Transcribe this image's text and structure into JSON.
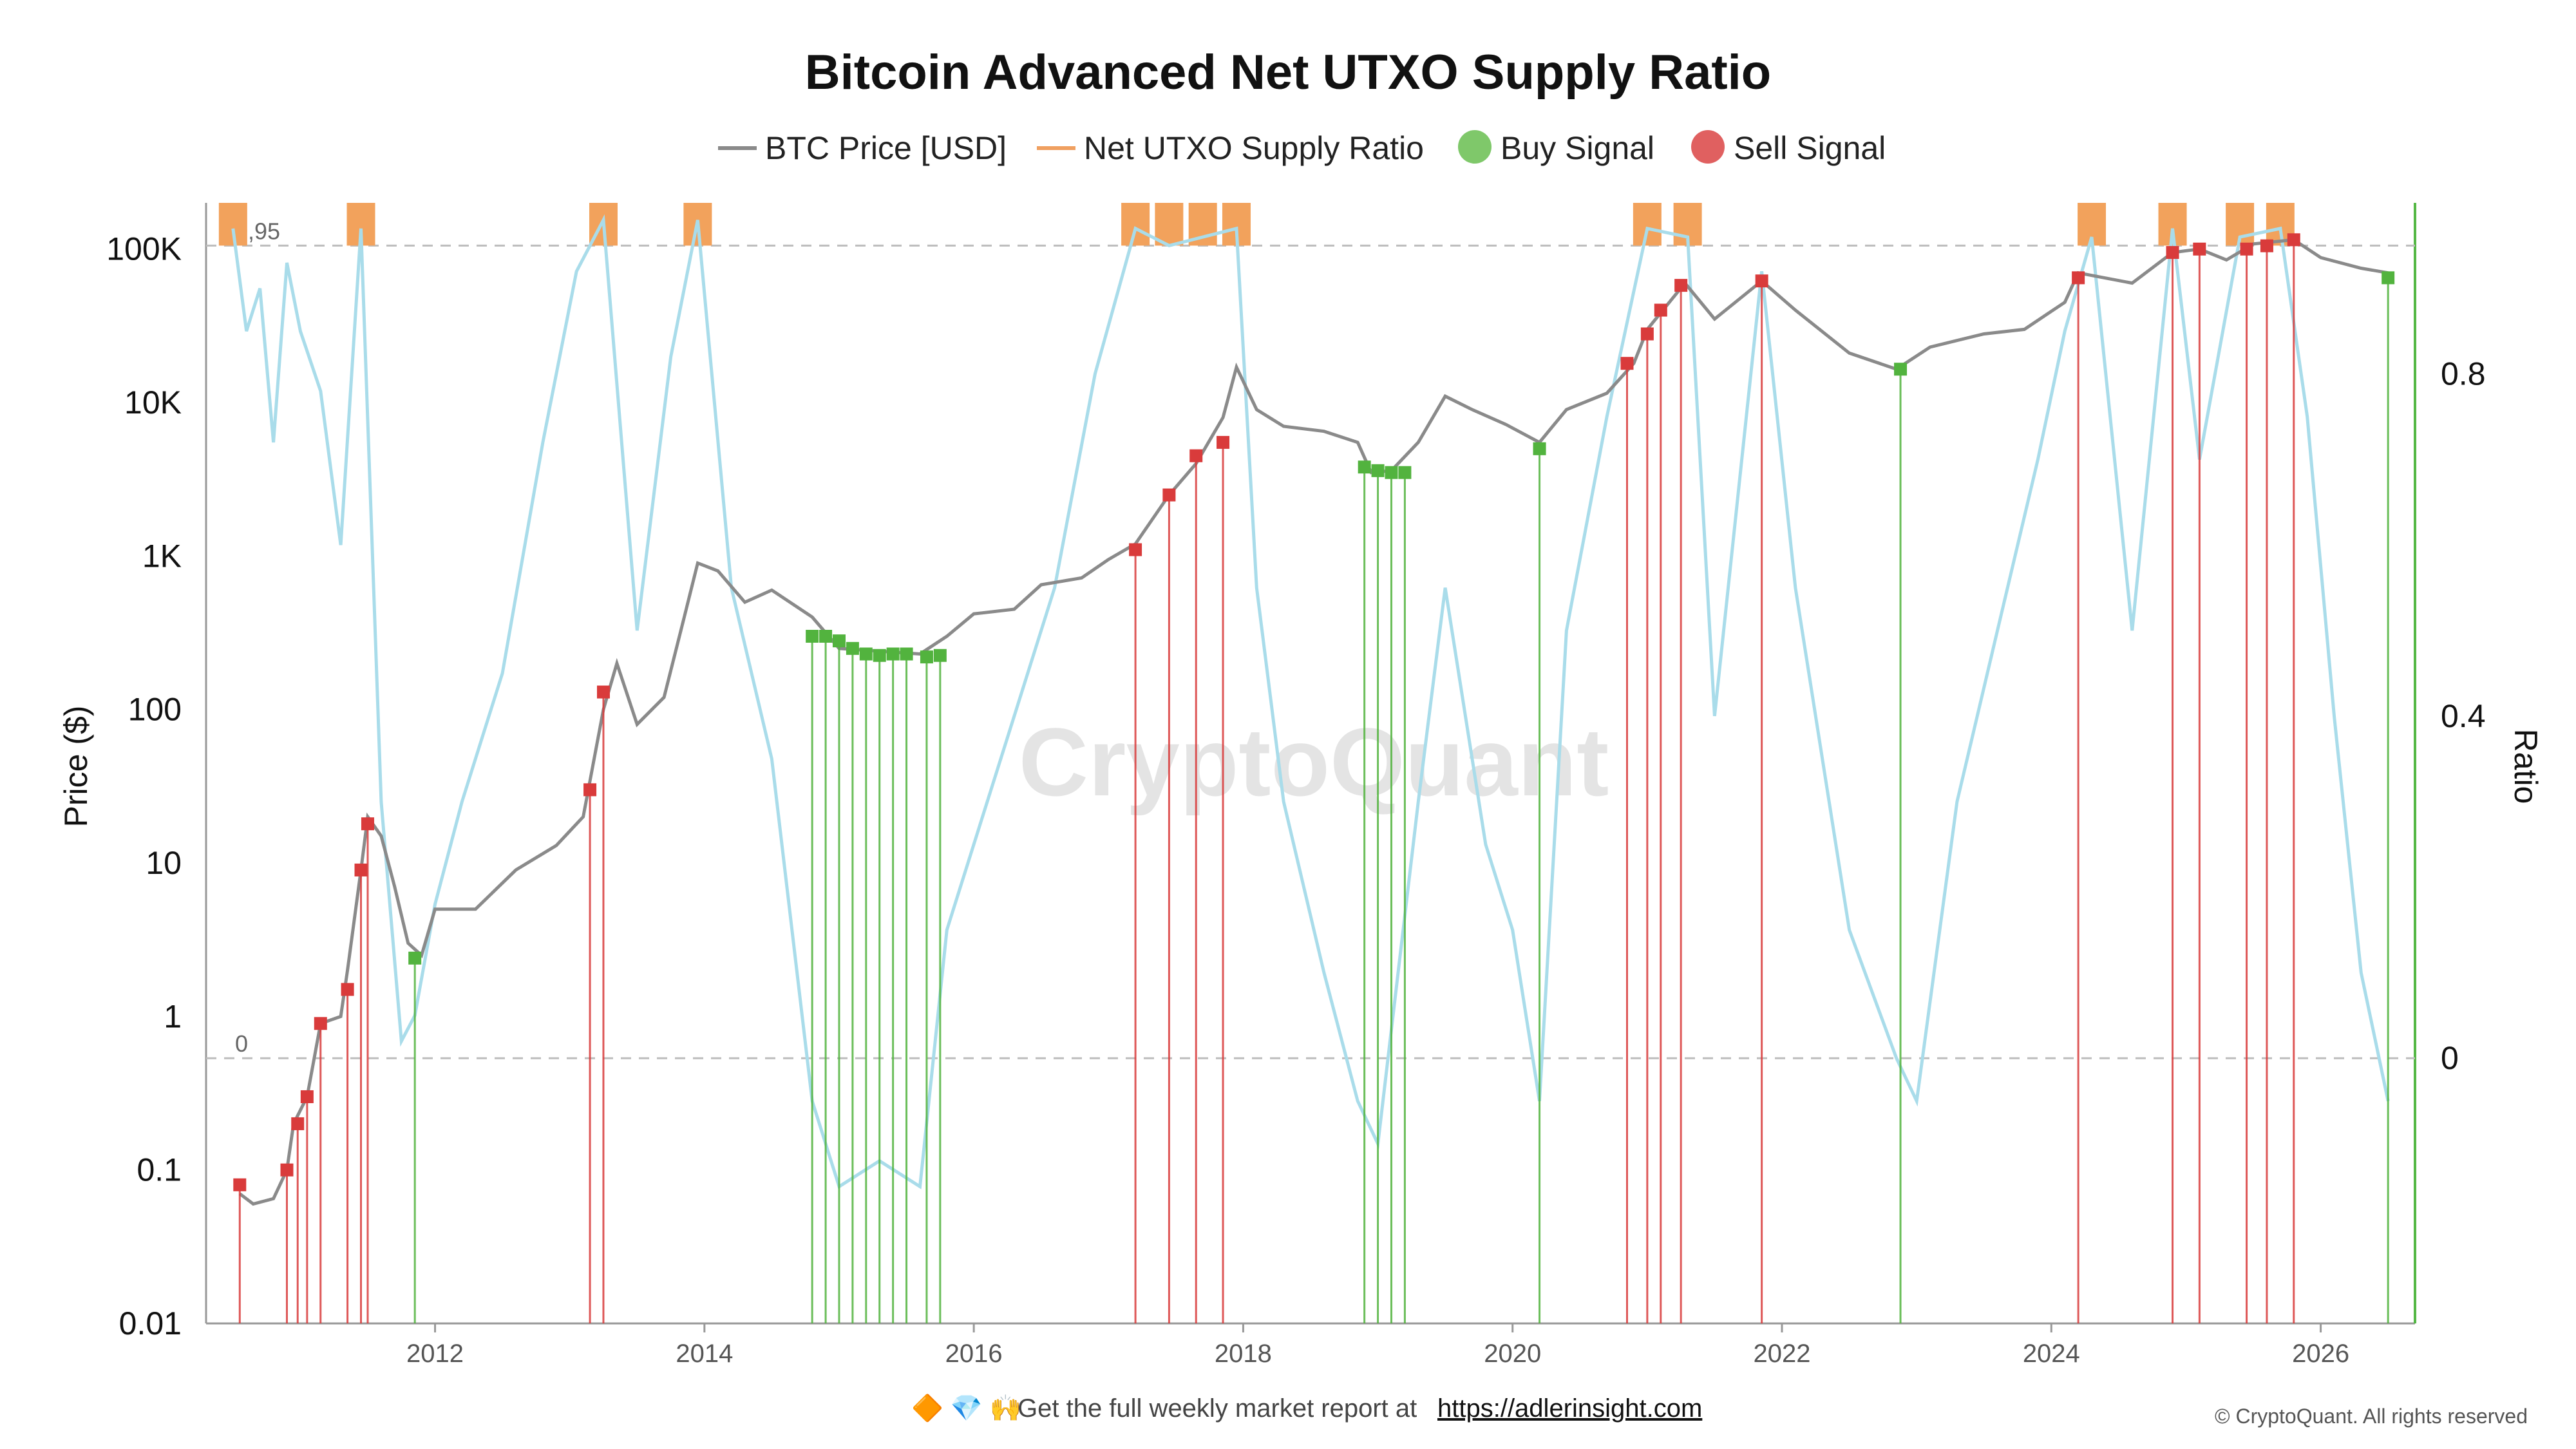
{
  "chart_data": {
    "type": "line",
    "title": "Bitcoin Advanced Net UTXO Supply Ratio",
    "legend": {
      "placement": "top-center",
      "entries": [
        {
          "name": "BTC Price [USD]",
          "color": "#8a8a8a",
          "kind": "line"
        },
        {
          "name": "Net UTXO Supply Ratio",
          "color": "#f0a060",
          "kind": "line"
        },
        {
          "name": "Buy Signal",
          "color": "#7fc86a",
          "kind": "dot"
        },
        {
          "name": "Sell Signal",
          "color": "#e06060",
          "kind": "dot"
        }
      ]
    },
    "y_left": {
      "label": "Price ($)",
      "scale": "log",
      "range": [
        0.01,
        200000
      ],
      "ticks": [
        {
          "value": 0.01,
          "label": "0.01"
        },
        {
          "value": 0.1,
          "label": "0.1"
        },
        {
          "value": 1,
          "label": "1"
        },
        {
          "value": 10,
          "label": "10"
        },
        {
          "value": 100,
          "label": "100"
        },
        {
          "value": 1000,
          "label": "1K"
        },
        {
          "value": 10000,
          "label": "10K"
        },
        {
          "value": 100000,
          "label": "100K"
        }
      ]
    },
    "y_right": {
      "label": "Ratio",
      "scale": "linear",
      "range": [
        -0.31,
        1.0
      ],
      "ticks": [
        {
          "value": 0,
          "label": "0"
        },
        {
          "value": 0.4,
          "label": "0.4"
        },
        {
          "value": 0.8,
          "label": "0.8"
        }
      ],
      "reference_lines": [
        {
          "value": 0.95,
          "label": "0,95"
        },
        {
          "value": 0,
          "label": "0"
        }
      ]
    },
    "x_axis": {
      "range": [
        2010.3,
        2026.7
      ],
      "ticks": [
        {
          "value": 2012,
          "label": "2012"
        },
        {
          "value": 2014,
          "label": "2014"
        },
        {
          "value": 2016,
          "label": "2016"
        },
        {
          "value": 2018,
          "label": "2018"
        },
        {
          "value": 2020,
          "label": "2020"
        },
        {
          "value": 2022,
          "label": "2022"
        },
        {
          "value": 2024,
          "label": "2024"
        },
        {
          "value": 2026,
          "label": "2026"
        }
      ]
    },
    "grid": false,
    "series": [
      {
        "name": "BTC Price [USD]",
        "color": "#8a8a8a",
        "points": [
          [
            2010.55,
            0.07
          ],
          [
            2010.65,
            0.06
          ],
          [
            2010.8,
            0.065
          ],
          [
            2010.9,
            0.1
          ],
          [
            2010.95,
            0.2
          ],
          [
            2011.05,
            0.3
          ],
          [
            2011.15,
            0.9
          ],
          [
            2011.3,
            1.0
          ],
          [
            2011.35,
            2
          ],
          [
            2011.45,
            9
          ],
          [
            2011.5,
            20
          ],
          [
            2011.6,
            15
          ],
          [
            2011.7,
            7
          ],
          [
            2011.8,
            3
          ],
          [
            2011.9,
            2.5
          ],
          [
            2012.0,
            5
          ],
          [
            2012.3,
            5
          ],
          [
            2012.6,
            9
          ],
          [
            2012.9,
            13
          ],
          [
            2013.1,
            20
          ],
          [
            2013.25,
            100
          ],
          [
            2013.35,
            200
          ],
          [
            2013.5,
            80
          ],
          [
            2013.7,
            120
          ],
          [
            2013.85,
            400
          ],
          [
            2013.95,
            900
          ],
          [
            2014.1,
            800
          ],
          [
            2014.3,
            500
          ],
          [
            2014.5,
            600
          ],
          [
            2014.8,
            400
          ],
          [
            2015.0,
            250
          ],
          [
            2015.3,
            240
          ],
          [
            2015.6,
            230
          ],
          [
            2015.8,
            300
          ],
          [
            2016.0,
            420
          ],
          [
            2016.3,
            450
          ],
          [
            2016.5,
            650
          ],
          [
            2016.8,
            720
          ],
          [
            2017.0,
            950
          ],
          [
            2017.2,
            1200
          ],
          [
            2017.45,
            2500
          ],
          [
            2017.65,
            4000
          ],
          [
            2017.85,
            8000
          ],
          [
            2017.95,
            17000
          ],
          [
            2018.1,
            9000
          ],
          [
            2018.3,
            7000
          ],
          [
            2018.6,
            6500
          ],
          [
            2018.85,
            5500
          ],
          [
            2018.95,
            3500
          ],
          [
            2019.1,
            3600
          ],
          [
            2019.3,
            5500
          ],
          [
            2019.5,
            11000
          ],
          [
            2019.7,
            9000
          ],
          [
            2019.95,
            7200
          ],
          [
            2020.2,
            5500
          ],
          [
            2020.4,
            9000
          ],
          [
            2020.7,
            11500
          ],
          [
            2020.9,
            18000
          ],
          [
            2021.0,
            30000
          ],
          [
            2021.28,
            60000
          ],
          [
            2021.5,
            35000
          ],
          [
            2021.85,
            62000
          ],
          [
            2022.1,
            40000
          ],
          [
            2022.5,
            21000
          ],
          [
            2022.85,
            16500
          ],
          [
            2023.1,
            23000
          ],
          [
            2023.5,
            28000
          ],
          [
            2023.8,
            30000
          ],
          [
            2024.1,
            45000
          ],
          [
            2024.2,
            70000
          ],
          [
            2024.6,
            60000
          ],
          [
            2024.9,
            95000
          ],
          [
            2025.1,
            100000
          ],
          [
            2025.3,
            85000
          ],
          [
            2025.5,
            108000
          ],
          [
            2025.8,
            115000
          ],
          [
            2026.0,
            88000
          ],
          [
            2026.3,
            75000
          ],
          [
            2026.5,
            70000
          ]
        ]
      },
      {
        "name": "Net UTXO Supply Ratio",
        "color": "#a9dcea",
        "points": [
          [
            2010.5,
            0.97
          ],
          [
            2010.6,
            0.85
          ],
          [
            2010.7,
            0.9
          ],
          [
            2010.8,
            0.72
          ],
          [
            2010.9,
            0.93
          ],
          [
            2011.0,
            0.85
          ],
          [
            2011.15,
            0.78
          ],
          [
            2011.3,
            0.6
          ],
          [
            2011.45,
            0.97
          ],
          [
            2011.6,
            0.3
          ],
          [
            2011.75,
            0.02
          ],
          [
            2011.85,
            0.05
          ],
          [
            2012.0,
            0.18
          ],
          [
            2012.2,
            0.3
          ],
          [
            2012.5,
            0.45
          ],
          [
            2012.8,
            0.72
          ],
          [
            2013.05,
            0.92
          ],
          [
            2013.25,
            0.98
          ],
          [
            2013.5,
            0.5
          ],
          [
            2013.75,
            0.82
          ],
          [
            2013.95,
            0.98
          ],
          [
            2014.2,
            0.55
          ],
          [
            2014.5,
            0.35
          ],
          [
            2014.8,
            -0.05
          ],
          [
            2015.0,
            -0.15
          ],
          [
            2015.3,
            -0.12
          ],
          [
            2015.6,
            -0.15
          ],
          [
            2015.8,
            0.15
          ],
          [
            2016.0,
            0.25
          ],
          [
            2016.3,
            0.4
          ],
          [
            2016.6,
            0.55
          ],
          [
            2016.9,
            0.8
          ],
          [
            2017.2,
            0.97
          ],
          [
            2017.45,
            0.95
          ],
          [
            2017.7,
            0.96
          ],
          [
            2017.95,
            0.97
          ],
          [
            2018.1,
            0.55
          ],
          [
            2018.3,
            0.3
          ],
          [
            2018.6,
            0.1
          ],
          [
            2018.85,
            -0.05
          ],
          [
            2019.0,
            -0.1
          ],
          [
            2019.3,
            0.3
          ],
          [
            2019.5,
            0.55
          ],
          [
            2019.8,
            0.25
          ],
          [
            2020.0,
            0.15
          ],
          [
            2020.2,
            -0.05
          ],
          [
            2020.4,
            0.5
          ],
          [
            2020.7,
            0.75
          ],
          [
            2021.0,
            0.97
          ],
          [
            2021.3,
            0.96
          ],
          [
            2021.5,
            0.4
          ],
          [
            2021.85,
            0.92
          ],
          [
            2022.1,
            0.55
          ],
          [
            2022.5,
            0.15
          ],
          [
            2022.85,
            0.0
          ],
          [
            2023.0,
            -0.05
          ],
          [
            2023.3,
            0.3
          ],
          [
            2023.6,
            0.5
          ],
          [
            2023.9,
            0.7
          ],
          [
            2024.1,
            0.85
          ],
          [
            2024.3,
            0.96
          ],
          [
            2024.6,
            0.5
          ],
          [
            2024.9,
            0.97
          ],
          [
            2025.1,
            0.7
          ],
          [
            2025.4,
            0.96
          ],
          [
            2025.7,
            0.97
          ],
          [
            2025.9,
            0.75
          ],
          [
            2026.1,
            0.4
          ],
          [
            2026.3,
            0.1
          ],
          [
            2026.5,
            -0.05
          ]
        ]
      }
    ],
    "overbought_fill_color": "#f2a25c",
    "buy_signals": {
      "color": "#52b33e",
      "events": [
        [
          2011.85,
          2.4
        ],
        [
          2014.8,
          300
        ],
        [
          2014.9,
          300
        ],
        [
          2015.0,
          280
        ],
        [
          2015.1,
          250
        ],
        [
          2015.2,
          230
        ],
        [
          2015.3,
          225
        ],
        [
          2015.4,
          230
        ],
        [
          2015.5,
          230
        ],
        [
          2015.65,
          220
        ],
        [
          2015.75,
          225
        ],
        [
          2018.9,
          3800
        ],
        [
          2019.0,
          3600
        ],
        [
          2019.1,
          3500
        ],
        [
          2019.2,
          3500
        ],
        [
          2020.2,
          5000
        ],
        [
          2022.88,
          16500
        ],
        [
          2026.5,
          65000
        ]
      ]
    },
    "sell_signals": {
      "color": "#d93b3b",
      "events": [
        [
          2010.55,
          0.08
        ],
        [
          2010.9,
          0.1
        ],
        [
          2010.98,
          0.2
        ],
        [
          2011.05,
          0.3
        ],
        [
          2011.15,
          0.9
        ],
        [
          2011.35,
          1.5
        ],
        [
          2011.45,
          9
        ],
        [
          2011.5,
          18
        ],
        [
          2013.15,
          30
        ],
        [
          2013.25,
          130
        ],
        [
          2017.2,
          1100
        ],
        [
          2017.45,
          2500
        ],
        [
          2017.65,
          4500
        ],
        [
          2017.85,
          5500
        ],
        [
          2020.85,
          18000
        ],
        [
          2021.0,
          28000
        ],
        [
          2021.1,
          40000
        ],
        [
          2021.25,
          58000
        ],
        [
          2021.85,
          62000
        ],
        [
          2024.2,
          65000
        ],
        [
          2024.9,
          95000
        ],
        [
          2025.1,
          100000
        ],
        [
          2025.45,
          100000
        ],
        [
          2025.6,
          105000
        ],
        [
          2025.8,
          115000
        ]
      ]
    }
  },
  "watermark": "CryptoQuant",
  "footer": {
    "emoji": "🔶 💎 🙌",
    "text": "Get the full weekly market report at",
    "link": "https://adlerinsight.com",
    "copyright": "© CryptoQuant. All rights reserved"
  }
}
